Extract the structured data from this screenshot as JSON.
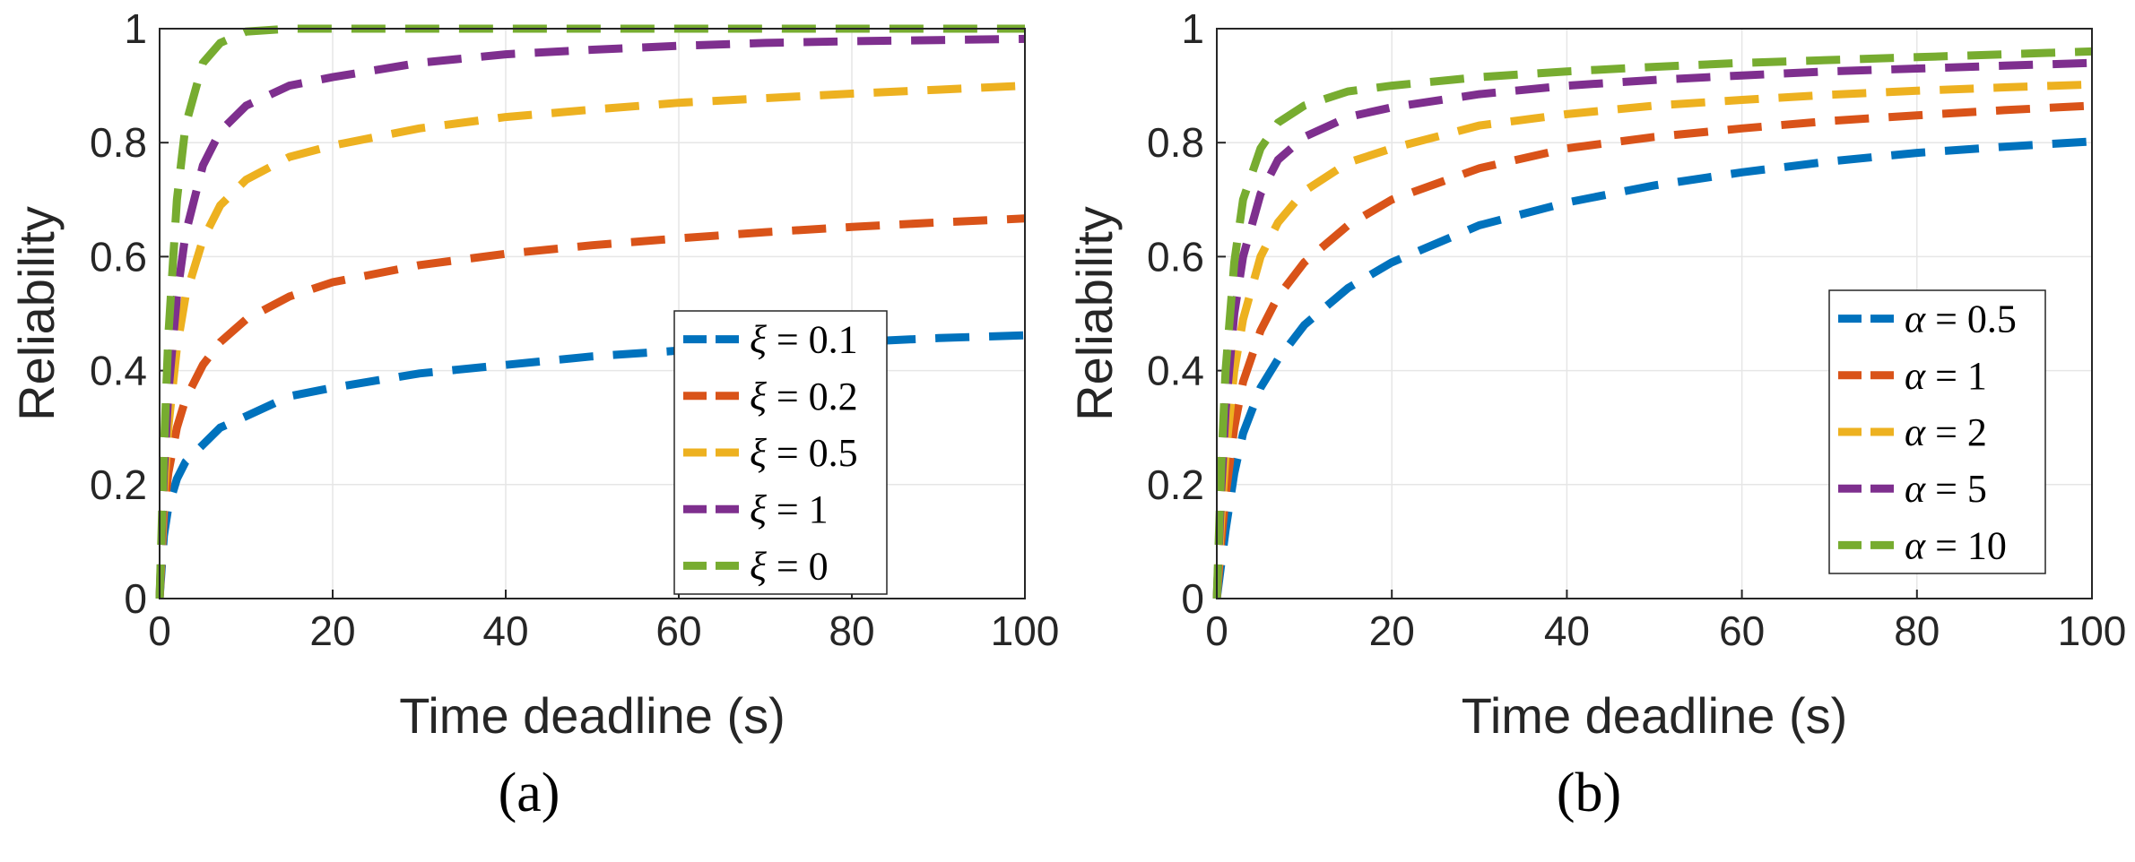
{
  "chart_data": [
    {
      "type": "line",
      "caption": "(a)",
      "xlabel": "Time deadline (s)",
      "ylabel": "Reliability",
      "xlim": [
        0,
        100
      ],
      "ylim": [
        0,
        1
      ],
      "xticks": [
        "0",
        "20",
        "40",
        "60",
        "80",
        "100"
      ],
      "yticks": [
        "0",
        "0.2",
        "0.4",
        "0.6",
        "0.8",
        "1"
      ],
      "grid": true,
      "legend_position": "center-right",
      "x": [
        0,
        0.5,
        1,
        2,
        3,
        5,
        7,
        10,
        15,
        20,
        30,
        40,
        50,
        60,
        70,
        80,
        90,
        100
      ],
      "series": [
        {
          "name": "ξ = 0.1",
          "symbol": "ξ",
          "value": "0.1",
          "color": "#0072BD",
          "values": [
            0,
            0.11,
            0.16,
            0.21,
            0.24,
            0.27,
            0.3,
            0.32,
            0.355,
            0.37,
            0.395,
            0.41,
            0.425,
            0.435,
            0.443,
            0.45,
            0.457,
            0.462
          ]
        },
        {
          "name": "ξ = 0.2",
          "symbol": "ξ",
          "value": "0.2",
          "color": "#D95319",
          "values": [
            0,
            0.15,
            0.22,
            0.3,
            0.35,
            0.41,
            0.45,
            0.49,
            0.53,
            0.555,
            0.585,
            0.605,
            0.62,
            0.632,
            0.643,
            0.652,
            0.66,
            0.667
          ]
        },
        {
          "name": "ξ = 0.5",
          "symbol": "ξ",
          "value": "0.5",
          "color": "#EDB120",
          "values": [
            0,
            0.18,
            0.3,
            0.44,
            0.53,
            0.63,
            0.69,
            0.735,
            0.775,
            0.795,
            0.825,
            0.845,
            0.858,
            0.87,
            0.878,
            0.886,
            0.893,
            0.9
          ]
        },
        {
          "name": "ξ = 1",
          "symbol": "ξ",
          "value": "1",
          "color": "#7E2F8E",
          "values": [
            0,
            0.22,
            0.36,
            0.53,
            0.64,
            0.76,
            0.82,
            0.865,
            0.9,
            0.915,
            0.94,
            0.955,
            0.963,
            0.97,
            0.975,
            0.978,
            0.98,
            0.982
          ]
        },
        {
          "name": "ξ = 0",
          "symbol": "ξ",
          "value": "0",
          "color": "#77AC30",
          "values": [
            0,
            0.26,
            0.46,
            0.7,
            0.83,
            0.94,
            0.975,
            0.995,
            1.0,
            1.0,
            1.0,
            1.0,
            1.0,
            1.0,
            1.0,
            1.0,
            1.0,
            1.0
          ]
        }
      ]
    },
    {
      "type": "line",
      "caption": "(b)",
      "xlabel": "Time deadline (s)",
      "ylabel": "Reliability",
      "xlim": [
        0,
        100
      ],
      "ylim": [
        0,
        1
      ],
      "xticks": [
        "0",
        "20",
        "40",
        "60",
        "80",
        "100"
      ],
      "yticks": [
        "0",
        "0.2",
        "0.4",
        "0.6",
        "0.8",
        "1"
      ],
      "grid": true,
      "legend_position": "right",
      "x": [
        0,
        0.5,
        1,
        2,
        3,
        5,
        7,
        10,
        15,
        20,
        30,
        40,
        50,
        60,
        70,
        80,
        90,
        100
      ],
      "series": [
        {
          "name": "α = 0.5",
          "symbol": "α",
          "value": "0.5",
          "color": "#0072BD",
          "values": [
            0,
            0.06,
            0.12,
            0.22,
            0.29,
            0.37,
            0.42,
            0.48,
            0.545,
            0.59,
            0.655,
            0.695,
            0.725,
            0.748,
            0.767,
            0.782,
            0.793,
            0.802
          ]
        },
        {
          "name": "α = 1",
          "symbol": "α",
          "value": "1",
          "color": "#D95319",
          "values": [
            0,
            0.1,
            0.18,
            0.3,
            0.38,
            0.47,
            0.53,
            0.59,
            0.655,
            0.7,
            0.755,
            0.79,
            0.81,
            0.825,
            0.838,
            0.848,
            0.857,
            0.865
          ]
        },
        {
          "name": "α = 2",
          "symbol": "α",
          "value": "2",
          "color": "#EDB120",
          "values": [
            0,
            0.14,
            0.25,
            0.4,
            0.49,
            0.6,
            0.66,
            0.715,
            0.765,
            0.79,
            0.83,
            0.85,
            0.865,
            0.875,
            0.884,
            0.891,
            0.897,
            0.902
          ]
        },
        {
          "name": "α = 5",
          "symbol": "α",
          "value": "5",
          "color": "#7E2F8E",
          "values": [
            0,
            0.19,
            0.33,
            0.5,
            0.6,
            0.71,
            0.77,
            0.81,
            0.845,
            0.862,
            0.885,
            0.9,
            0.91,
            0.918,
            0.925,
            0.93,
            0.935,
            0.94
          ]
        },
        {
          "name": "α = 10",
          "symbol": "α",
          "value": "10",
          "color": "#77AC30",
          "values": [
            0,
            0.23,
            0.4,
            0.59,
            0.7,
            0.79,
            0.835,
            0.865,
            0.89,
            0.9,
            0.915,
            0.925,
            0.933,
            0.94,
            0.945,
            0.95,
            0.955,
            0.96
          ]
        }
      ]
    }
  ]
}
